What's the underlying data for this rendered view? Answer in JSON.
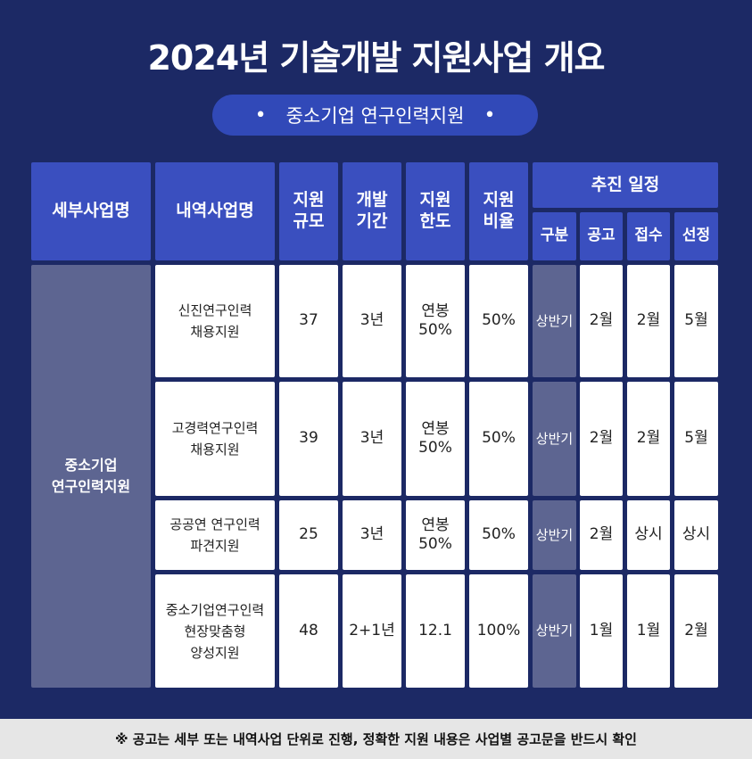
{
  "title": "2024년 기술개발 지원사업 개요",
  "subtitle": "중소기업 연구인력지원",
  "subtitle_bullet": "•",
  "headers": {
    "program": "세부사업명",
    "subprogram": "내역사업명",
    "scale": "지원\n규모",
    "period": "개발\n기간",
    "limit": "지원\n한도",
    "ratio": "지원\n비율",
    "schedule": "추진 일정",
    "category": "구분",
    "announce": "공고",
    "receipt": "접수",
    "selection": "선정"
  },
  "program_name": "중소기업\n연구인력지원",
  "rows": [
    {
      "name": "신진연구인력\n채용지원",
      "scale": "37",
      "period": "3년",
      "limit": "연봉\n50%",
      "ratio": "50%",
      "category": "상반기",
      "announce": "2월",
      "receipt": "2월",
      "selection": "5월"
    },
    {
      "name": "고경력연구인력\n채용지원",
      "scale": "39",
      "period": "3년",
      "limit": "연봉\n50%",
      "ratio": "50%",
      "category": "상반기",
      "announce": "2월",
      "receipt": "2월",
      "selection": "5월"
    },
    {
      "name": "공공연 연구인력\n파견지원",
      "scale": "25",
      "period": "3년",
      "limit": "연봉\n50%",
      "ratio": "50%",
      "category": "상반기",
      "announce": "2월",
      "receipt": "상시",
      "selection": "상시"
    },
    {
      "name": "중소기업연구인력\n현장맞춤형\n양성지원",
      "scale": "48",
      "period": "2+1년",
      "limit": "12.1",
      "ratio": "100%",
      "category": "상반기",
      "announce": "1월",
      "receipt": "1월",
      "selection": "2월"
    }
  ],
  "footnote": "※ 공고는 세부 또는 내역사업 단위로 진행, 정확한 지원 내용은 사업별 공고문을 반드시 확인",
  "colors": {
    "background": "#1c2965",
    "header": "#3a4fbf",
    "pill": "#3149b8",
    "program_cell": "#5d6591",
    "footer": "#e6e6e6"
  }
}
